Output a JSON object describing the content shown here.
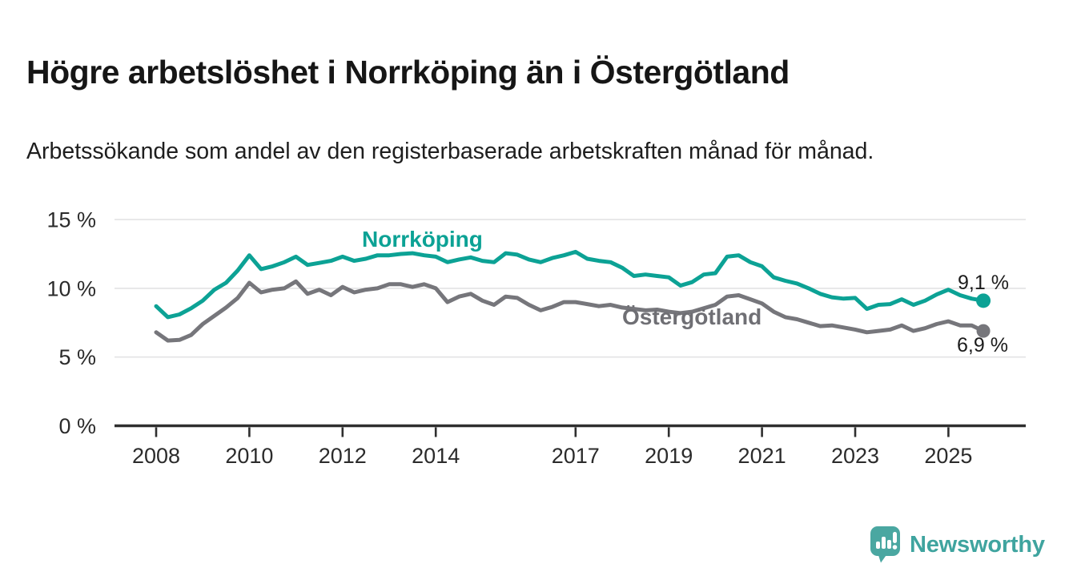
{
  "header": {
    "title": "Högre arbetslöshet i Norrköping än i Östergötland",
    "subtitle": "Arbetssökande som andel av den registerbaserade arbetskraften månad för månad."
  },
  "colors": {
    "norrkoping": "#0ca295",
    "ostergotland": "#76767b",
    "grid": "#e3e3e4",
    "axis": "#2f2f2f",
    "tick_text": "#2b2b2b",
    "end_label_text": "#1c1c1c",
    "brand_teal": "#3fa49f",
    "brand_icon": "#4aa7a1"
  },
  "chart_data": {
    "type": "line",
    "title": "Högre arbetslöshet i Norrköping än i Östergötland",
    "subtitle": "Arbetssökande som andel av den registerbaserade arbetskraften månad för månad.",
    "xlabel": "",
    "ylabel": "",
    "grid": true,
    "legend_position": "inline-labels",
    "x_axis": {
      "ticks": [
        2008,
        2010,
        2012,
        2014,
        2017,
        2019,
        2021,
        2023,
        2025
      ],
      "tick_labels": [
        "2008",
        "2010",
        "2012",
        "2014",
        "2017",
        "2019",
        "2021",
        "2023",
        "2025"
      ],
      "range": [
        2007.1,
        2026.7
      ]
    },
    "y_axis": {
      "ticks": [
        0,
        5,
        10,
        15
      ],
      "tick_labels": [
        "0 %",
        "5 %",
        "10 %",
        "15 %"
      ],
      "unit": "%",
      "range": [
        0,
        16.1
      ]
    },
    "x_start": 2008.0,
    "x_step": 0.25,
    "series": [
      {
        "name": "Norrköping",
        "color": "#0ca295",
        "end_label": "9,1 %",
        "last_value": 9.1,
        "values": [
          8.7,
          7.9,
          8.1,
          8.55,
          9.1,
          9.9,
          10.4,
          11.3,
          12.4,
          11.4,
          11.6,
          11.9,
          12.3,
          11.7,
          11.85,
          12.0,
          12.3,
          12.0,
          12.15,
          12.4,
          12.4,
          12.5,
          12.55,
          12.4,
          12.3,
          11.9,
          12.1,
          12.25,
          12.0,
          11.9,
          12.55,
          12.45,
          12.1,
          11.9,
          12.2,
          12.4,
          12.65,
          12.15,
          12.0,
          11.9,
          11.5,
          10.9,
          11.0,
          10.9,
          10.8,
          10.2,
          10.45,
          11.0,
          11.1,
          12.3,
          12.4,
          11.9,
          11.6,
          10.8,
          10.55,
          10.35,
          10.0,
          9.6,
          9.35,
          9.25,
          9.3,
          8.5,
          8.8,
          8.85,
          9.2,
          8.8,
          9.1,
          9.55,
          9.9,
          9.5,
          9.25,
          9.1
        ]
      },
      {
        "name": "Östergötland",
        "color": "#76767b",
        "end_label": "6,9 %",
        "last_value": 6.9,
        "values": [
          6.8,
          6.2,
          6.25,
          6.6,
          7.4,
          8.0,
          8.6,
          9.3,
          10.4,
          9.7,
          9.9,
          10.0,
          10.5,
          9.6,
          9.9,
          9.5,
          10.1,
          9.7,
          9.9,
          10.0,
          10.3,
          10.3,
          10.1,
          10.3,
          10.0,
          9.0,
          9.4,
          9.6,
          9.1,
          8.8,
          9.4,
          9.3,
          8.8,
          8.4,
          8.65,
          9.0,
          9.0,
          8.85,
          8.7,
          8.8,
          8.6,
          8.5,
          8.4,
          8.45,
          8.3,
          8.2,
          8.3,
          8.55,
          8.8,
          9.4,
          9.5,
          9.2,
          8.9,
          8.3,
          7.9,
          7.75,
          7.5,
          7.25,
          7.3,
          7.15,
          7.0,
          6.8,
          6.9,
          7.0,
          7.3,
          6.9,
          7.1,
          7.4,
          7.6,
          7.3,
          7.3,
          6.9
        ]
      }
    ]
  },
  "footer": {
    "brand": "Newsworthy",
    "logo_icon": "bar-chart-speech-bubble"
  }
}
